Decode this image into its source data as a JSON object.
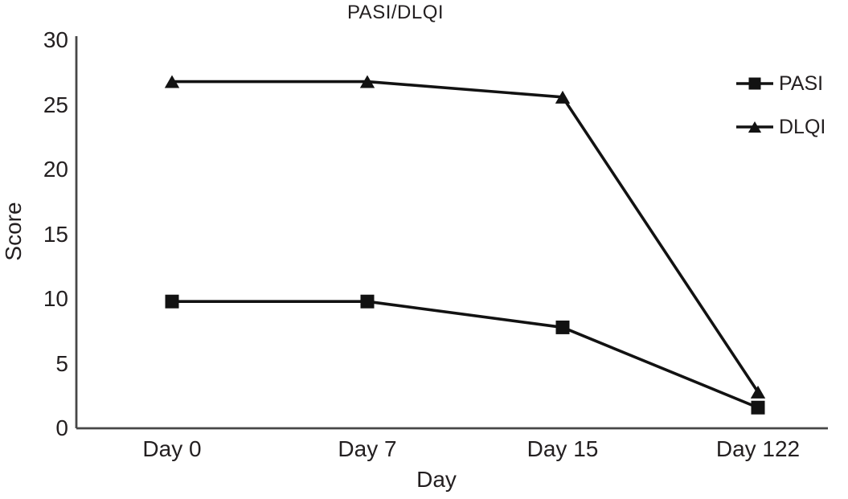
{
  "chart_data": {
    "type": "line",
    "title": "PASI/DLQI",
    "xlabel": "Day",
    "ylabel": "Score",
    "categories": [
      "Day 0",
      "Day 7",
      "Day 15",
      "Day 122"
    ],
    "series": [
      {
        "name": "PASI",
        "marker": "square",
        "values": [
          9.8,
          9.8,
          7.8,
          1.6
        ]
      },
      {
        "name": "DLQI",
        "marker": "triangle",
        "values": [
          26.8,
          26.8,
          25.6,
          2.8
        ]
      }
    ],
    "ylim": [
      0,
      30
    ],
    "yticks": [
      0,
      5,
      10,
      15,
      20,
      25,
      30
    ],
    "grid": false,
    "legend_position": "top-right",
    "colors": {
      "series": "#121212",
      "axis": "#474747",
      "text": "#231f20",
      "background": "#ffffff"
    }
  }
}
